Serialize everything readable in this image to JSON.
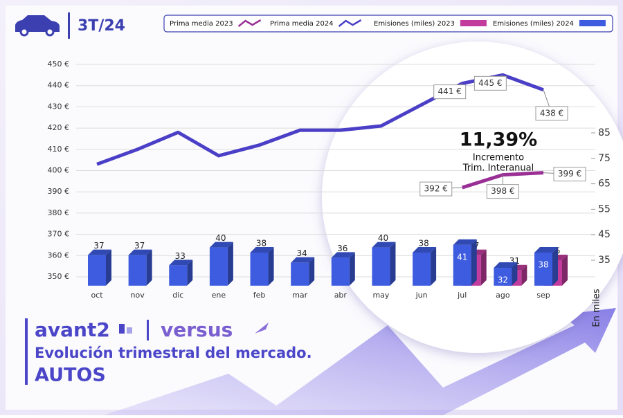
{
  "header": {
    "period": "3T/24"
  },
  "brand": {
    "name": "avant2",
    "partner": "versus",
    "title": "Evolución trimestral del mercado.",
    "subtitle": "AUTOS"
  },
  "chart_data": {
    "type": "bar-line",
    "categories": [
      "oct",
      "nov",
      "dic",
      "ene",
      "feb",
      "mar",
      "abr",
      "may",
      "jun",
      "jul",
      "ago",
      "sep"
    ],
    "series": [
      {
        "name": "Prima media 2023",
        "type": "line",
        "axis": "y",
        "color": "#9a2f96",
        "values": [
          null,
          null,
          null,
          null,
          null,
          null,
          null,
          null,
          null,
          392,
          398,
          399
        ],
        "value_labels": [
          null,
          null,
          null,
          null,
          null,
          null,
          null,
          null,
          null,
          "392 €",
          "398 €",
          "399 €"
        ]
      },
      {
        "name": "Prima media 2024",
        "type": "line",
        "axis": "y",
        "color": "#4a3fc6",
        "values": [
          403,
          410,
          418,
          407,
          412,
          419,
          419,
          421,
          431,
          441,
          445,
          438
        ],
        "value_labels": [
          null,
          null,
          null,
          null,
          null,
          null,
          null,
          null,
          null,
          "441 €",
          "445 €",
          "438 €"
        ]
      },
      {
        "name": "Emisiones (miles) 2023",
        "type": "bar",
        "axis": "y2",
        "color": "#c23c9e",
        "values": [
          null,
          null,
          null,
          null,
          null,
          null,
          null,
          null,
          null,
          37,
          31,
          35
        ]
      },
      {
        "name": "Emisiones (miles) 2024",
        "type": "bar",
        "axis": "y2",
        "color": "#3d5ce0",
        "values": [
          37,
          37,
          33,
          40,
          38,
          34,
          36,
          40,
          38,
          41,
          32,
          38
        ]
      }
    ],
    "ylim": [
      350,
      450
    ],
    "yticks": [
      {
        "value": 350,
        "label": "350 €"
      },
      {
        "value": 360,
        "label": "360 €"
      },
      {
        "value": 370,
        "label": "370 €"
      },
      {
        "value": 380,
        "label": "380 €"
      },
      {
        "value": 390,
        "label": "390 €"
      },
      {
        "value": 400,
        "label": "400 €"
      },
      {
        "value": 410,
        "label": "410 €"
      },
      {
        "value": 420,
        "label": "420 €"
      },
      {
        "value": 430,
        "label": "430 €"
      },
      {
        "value": 440,
        "label": "440 €"
      },
      {
        "value": 450,
        "label": "450 €"
      }
    ],
    "y2lim": [
      25,
      85
    ],
    "y2ticks": [
      35,
      45,
      55,
      65,
      75,
      85
    ],
    "y2label": "En miles",
    "grid": true,
    "annotation": {
      "value": "11,39%",
      "lines": [
        "Incremento",
        "Trim. Interanual"
      ]
    }
  }
}
